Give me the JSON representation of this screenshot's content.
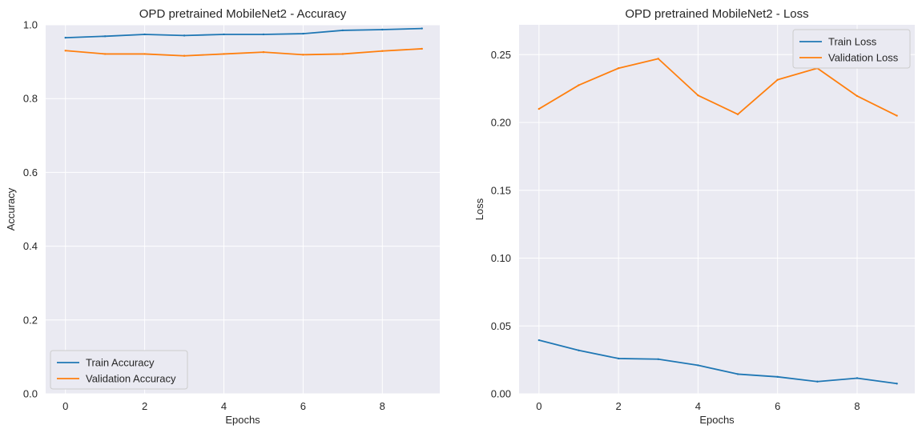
{
  "colors": {
    "plot_background": "#eaeaf2",
    "grid": "#ffffff",
    "text": "#262626"
  },
  "chart_data": [
    {
      "type": "line",
      "title": "OPD pretrained MobileNet2 - Accuracy",
      "xlabel": "Epochs",
      "ylabel": "Accuracy",
      "x": [
        0,
        1,
        2,
        3,
        4,
        5,
        6,
        7,
        8,
        9
      ],
      "xlim": [
        -0.5,
        9.45
      ],
      "ylim": [
        0,
        1.0
      ],
      "xticks": [
        0,
        2,
        4,
        6,
        8
      ],
      "yticks": [
        0.0,
        0.2,
        0.4,
        0.6,
        0.8,
        1.0
      ],
      "ytick_decimals": 1,
      "grid": true,
      "legend_position": "lower-left",
      "series": [
        {
          "name": "Train Accuracy",
          "color": "#1f77b4",
          "values": [
            0.965,
            0.969,
            0.974,
            0.971,
            0.974,
            0.974,
            0.976,
            0.985,
            0.987,
            0.99
          ]
        },
        {
          "name": "Validation Accuracy",
          "color": "#ff7f0e",
          "values": [
            0.93,
            0.921,
            0.921,
            0.916,
            0.921,
            0.926,
            0.919,
            0.921,
            0.929,
            0.935
          ]
        }
      ]
    },
    {
      "type": "line",
      "title": "OPD pretrained MobileNet2 - Loss",
      "xlabel": "Epochs",
      "ylabel": "Loss",
      "x": [
        0,
        1,
        2,
        3,
        4,
        5,
        6,
        7,
        8,
        9
      ],
      "xlim": [
        -0.5,
        9.45
      ],
      "ylim": [
        0,
        0.272
      ],
      "xticks": [
        0,
        2,
        4,
        6,
        8
      ],
      "yticks": [
        0.0,
        0.05,
        0.1,
        0.15,
        0.2,
        0.25
      ],
      "ytick_decimals": 2,
      "grid": true,
      "legend_position": "upper-right",
      "series": [
        {
          "name": "Train Loss",
          "color": "#1f77b4",
          "values": [
            0.0395,
            0.032,
            0.026,
            0.0255,
            0.021,
            0.0145,
            0.0125,
            0.009,
            0.0115,
            0.0075
          ]
        },
        {
          "name": "Validation Loss",
          "color": "#ff7f0e",
          "values": [
            0.21,
            0.2275,
            0.24,
            0.247,
            0.22,
            0.206,
            0.2315,
            0.24,
            0.2195,
            0.205
          ]
        }
      ]
    }
  ]
}
